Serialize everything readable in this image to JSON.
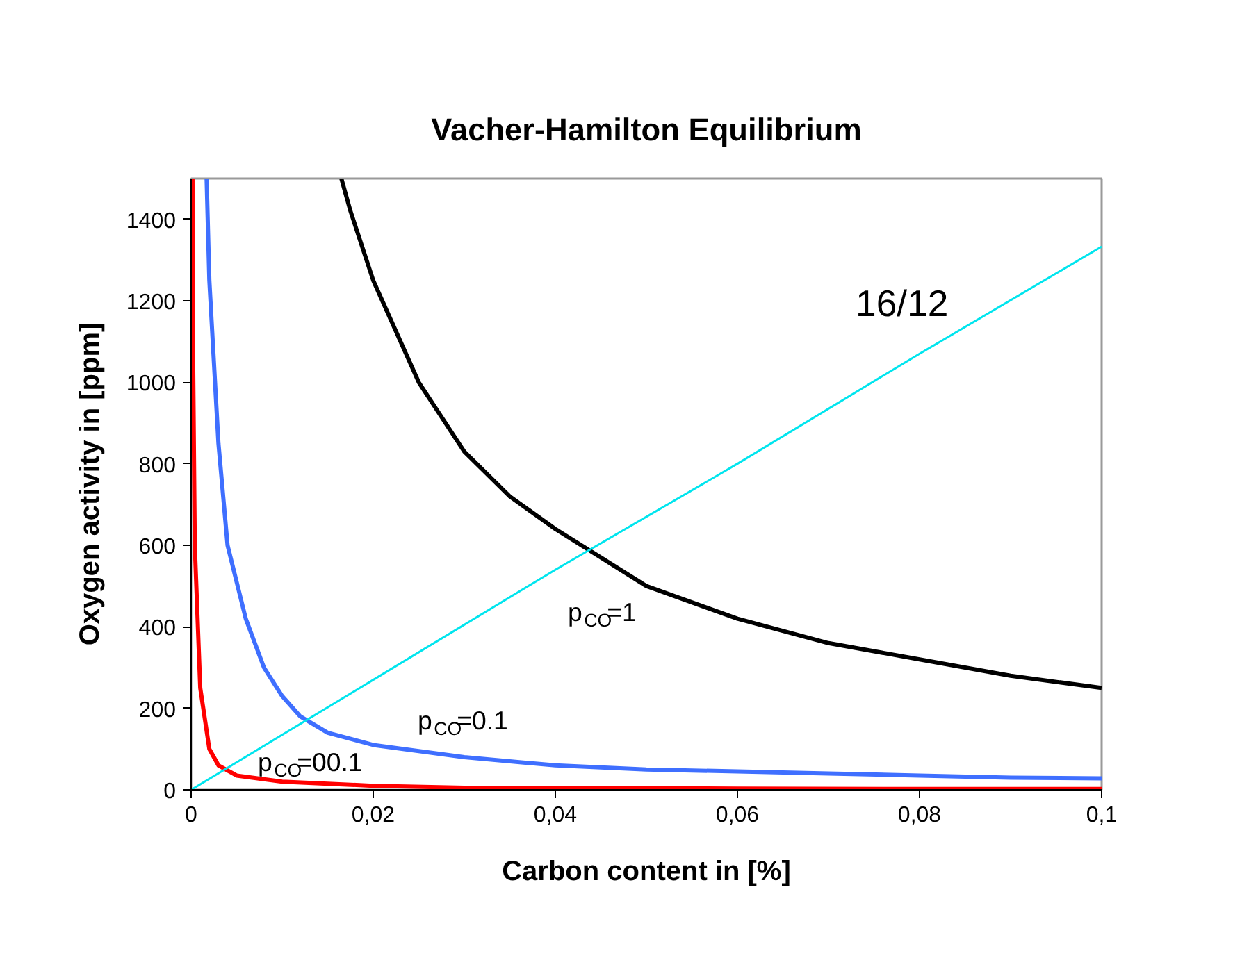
{
  "chart_data": {
    "type": "line",
    "title": "Vacher-Hamilton Equilibrium",
    "xlabel": "Carbon content in [%]",
    "ylabel": "Oxygen activity in [ppm]",
    "xlim": [
      0,
      0.1
    ],
    "ylim": [
      0,
      1500
    ],
    "xticks": [
      0,
      {
        "value": 0.02,
        "label": "0,02"
      },
      {
        "value": 0.04,
        "label": "0,04"
      },
      {
        "value": 0.06,
        "label": "0,06"
      },
      {
        "value": 0.08,
        "label": "0,08"
      },
      {
        "value": 0.1,
        "label": "0,1"
      }
    ],
    "yticks": [
      0,
      200,
      400,
      600,
      800,
      1000,
      1200,
      1400
    ],
    "grid": false,
    "marker": "none",
    "line_style": "solid",
    "series": [
      {
        "color": "#000000",
        "x": [
          0.0165,
          0.0175,
          0.02,
          0.025,
          0.03,
          0.035,
          0.04,
          0.05,
          0.06,
          0.07,
          0.08,
          0.09,
          0.1
        ],
        "values": [
          1500,
          1420,
          1250,
          1000,
          830,
          720,
          640,
          500,
          420,
          360,
          320,
          280,
          250
        ]
      },
      {
        "color": "#3f6fff",
        "x": [
          0.0017,
          0.002,
          0.003,
          0.004,
          0.006,
          0.008,
          0.01,
          0.012,
          0.015,
          0.02,
          0.03,
          0.04,
          0.05,
          0.06,
          0.07,
          0.08,
          0.09,
          0.1
        ],
        "values": [
          1500,
          1250,
          850,
          600,
          420,
          300,
          230,
          180,
          140,
          110,
          80,
          60,
          50,
          45,
          40,
          35,
          30,
          28
        ]
      },
      {
        "color": "#ff0000",
        "x": [
          0.00015,
          0.0002,
          0.0004,
          0.001,
          0.002,
          0.003,
          0.005,
          0.01,
          0.02,
          0.03,
          0.06,
          0.08,
          0.1
        ],
        "values": [
          1500,
          1100,
          600,
          250,
          100,
          60,
          35,
          20,
          10,
          5,
          3,
          2,
          2
        ]
      },
      {
        "color": "#00e5ee",
        "x": [
          0,
          0.02,
          0.04,
          0.06,
          0.08,
          0.1
        ],
        "values": [
          0,
          270,
          540,
          800,
          1070,
          1333
        ]
      }
    ],
    "annotations": [
      "p$_{CO}$=1",
      "p$_{CO}$=0.1",
      "p$_{CO}$=00.1",
      "16/12"
    ]
  }
}
